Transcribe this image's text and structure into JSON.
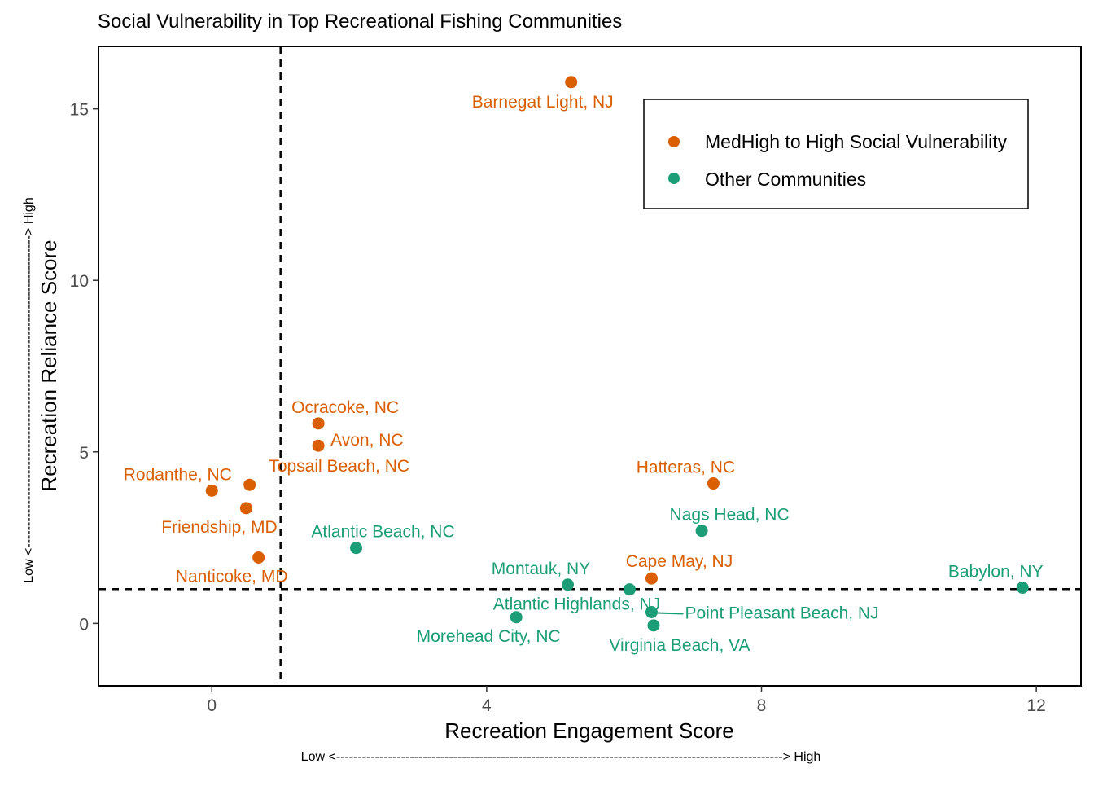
{
  "chart_data": {
    "type": "scatter",
    "title": "Social Vulnerability in Top Recreational Fishing Communities",
    "xlabel": "Recreation Engagement Score",
    "ylabel": "Recreation Reliance Score",
    "x_direction_note": "Low <-------------------------------------------------------------------------------------------------------> High",
    "y_direction_note": "Low <------------------------------------------------------------------------> High",
    "xlim": [
      -1.65,
      12.65
    ],
    "ylim": [
      -1.82,
      16.82
    ],
    "x_ticks": [
      0,
      4,
      8,
      12
    ],
    "y_ticks": [
      0,
      5,
      10,
      15
    ],
    "x_tick_labels": [
      "0",
      "4",
      "8",
      "12"
    ],
    "y_tick_labels": [
      "0",
      "5",
      "10",
      "15"
    ],
    "reference_lines": {
      "x": 1,
      "y": 1
    },
    "grid": false,
    "legend_position": "top-right",
    "series": [
      {
        "name": "MedHigh to High Social Vulnerability",
        "color": "#D95F02",
        "points": [
          {
            "label": "Barnegat Light, NJ",
            "x": 5.23,
            "y": 15.78
          },
          {
            "label": "Ocracoke, NC",
            "x": 1.55,
            "y": 5.83
          },
          {
            "label": "Avon, NC",
            "x": 1.55,
            "y": 5.18
          },
          {
            "label": "Rodanthe, NC",
            "x": 0.0,
            "y": 3.87
          },
          {
            "label": "Topsail Beach, NC",
            "x": 0.55,
            "y": 4.04
          },
          {
            "label": "Friendship, MD",
            "x": 0.5,
            "y": 3.36
          },
          {
            "label": "Nanticoke, MD",
            "x": 0.68,
            "y": 1.92
          },
          {
            "label": "Hatteras, NC",
            "x": 7.3,
            "y": 4.08
          },
          {
            "label": "Cape May, NJ",
            "x": 6.4,
            "y": 1.31
          }
        ]
      },
      {
        "name": "Other Communities",
        "color": "#1B9E77",
        "points": [
          {
            "label": "Atlantic Beach, NC",
            "x": 2.1,
            "y": 2.2
          },
          {
            "label": "Nags Head, NC",
            "x": 7.13,
            "y": 2.7
          },
          {
            "label": "Montauk, NY",
            "x": 5.18,
            "y": 1.13
          },
          {
            "label": "Atlantic Highlands, NJ",
            "x": 6.08,
            "y": 0.99
          },
          {
            "label": "Babylon, NY",
            "x": 11.8,
            "y": 1.04
          },
          {
            "label": "Point Pleasant Beach, NJ",
            "x": 6.4,
            "y": 0.33
          },
          {
            "label": "Morehead City, NC",
            "x": 4.43,
            "y": 0.18
          },
          {
            "label": "Virginia Beach, VA",
            "x": 6.43,
            "y": -0.06
          }
        ]
      }
    ]
  }
}
